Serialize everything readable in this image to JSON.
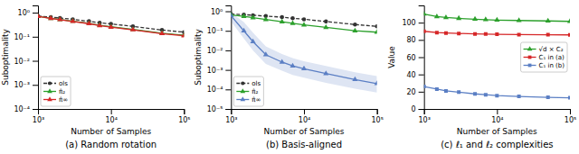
{
  "chart_data": [
    {
      "type": "line",
      "title": "(a) Random rotation",
      "xlabel": "Number of Samples",
      "ylabel": "Suboptimality",
      "x": [
        1000,
        1500,
        2000,
        3000,
        5000,
        7000,
        10000,
        20000,
        50000,
        100000
      ],
      "xlim": [
        1000,
        100000
      ],
      "xticks": [
        {
          "value": 1000,
          "label": "10³"
        },
        {
          "value": 10000,
          "label": "10⁴"
        },
        {
          "value": 100000,
          "label": "10⁵"
        }
      ],
      "ylim": [
        0.0001,
        2
      ],
      "yticks": [
        {
          "value": 0.0001,
          "label": "10⁻⁴"
        },
        {
          "value": 0.001,
          "label": "10⁻³"
        },
        {
          "value": 0.01,
          "label": "10⁻²"
        },
        {
          "value": 0.1,
          "label": "10⁻¹"
        },
        {
          "value": 1,
          "label": "10⁰"
        }
      ],
      "log": true,
      "grid": false,
      "legend": "lower left",
      "series": [
        {
          "name": "ols",
          "color": "#333333",
          "line_style": "dashed",
          "marker": "circle",
          "values": [
            0.72,
            0.65,
            0.6,
            0.53,
            0.44,
            0.38,
            0.34,
            0.27,
            0.19,
            0.155
          ]
        },
        {
          "name": "π̂₂",
          "color": "#2ca02c",
          "line_style": "solid",
          "marker": "triangle",
          "values": [
            0.7,
            0.58,
            0.52,
            0.44,
            0.36,
            0.3,
            0.26,
            0.2,
            0.14,
            0.115
          ]
        },
        {
          "name": "π̂∞",
          "color": "#d62728",
          "line_style": "solid",
          "marker": "triangle",
          "values": [
            0.7,
            0.58,
            0.51,
            0.43,
            0.35,
            0.29,
            0.25,
            0.195,
            0.135,
            0.11
          ],
          "lower": [
            0.65,
            0.53,
            0.47,
            0.4,
            0.32,
            0.27,
            0.23,
            0.18,
            0.125,
            0.1
          ],
          "upper": [
            0.75,
            0.63,
            0.56,
            0.47,
            0.38,
            0.32,
            0.27,
            0.21,
            0.145,
            0.12
          ]
        }
      ]
    },
    {
      "type": "line",
      "title": "(b) Basis-aligned",
      "xlabel": "Number of Samples",
      "ylabel": "Suboptimality",
      "x": [
        1000,
        1500,
        2000,
        3000,
        5000,
        7000,
        10000,
        20000,
        50000,
        100000
      ],
      "xlim": [
        1000,
        100000
      ],
      "xticks": [
        {
          "value": 1000,
          "label": "10³"
        },
        {
          "value": 10000,
          "label": "10⁴"
        },
        {
          "value": 100000,
          "label": "10⁵"
        }
      ],
      "ylim": [
        1e-05,
        2
      ],
      "yticks": [
        {
          "value": 1e-05,
          "label": "10⁻⁵"
        },
        {
          "value": 0.0001,
          "label": "10⁻⁴"
        },
        {
          "value": 0.001,
          "label": "10⁻³"
        },
        {
          "value": 0.01,
          "label": "10⁻²"
        },
        {
          "value": 0.1,
          "label": "10⁻¹"
        },
        {
          "value": 1,
          "label": "10⁰"
        }
      ],
      "log": true,
      "grid": false,
      "legend": "lower left",
      "series": [
        {
          "name": "ols",
          "color": "#333333",
          "line_style": "dashed",
          "marker": "circle",
          "values": [
            0.72,
            0.67,
            0.63,
            0.57,
            0.5,
            0.44,
            0.39,
            0.3,
            0.21,
            0.17
          ]
        },
        {
          "name": "π̂₂",
          "color": "#2ca02c",
          "line_style": "solid",
          "marker": "triangle",
          "values": [
            0.65,
            0.55,
            0.47,
            0.38,
            0.29,
            0.24,
            0.2,
            0.15,
            0.1,
            0.085
          ]
        },
        {
          "name": "π̂∞",
          "color": "#5b7fc4",
          "line_style": "solid",
          "marker": "triangle",
          "values": [
            0.6,
            0.1,
            0.028,
            0.006,
            0.0025,
            0.0016,
            0.00115,
            0.00065,
            0.00032,
            0.0002
          ],
          "lower": [
            0.3,
            0.04,
            0.01,
            0.002,
            0.0009,
            0.00055,
            0.0004,
            0.00022,
            0.00011,
            7e-05
          ],
          "upper": [
            0.85,
            0.28,
            0.08,
            0.016,
            0.0065,
            0.004,
            0.0028,
            0.0016,
            0.00075,
            0.00048
          ]
        }
      ]
    },
    {
      "type": "line",
      "title": "(c) ℓ₁ and ℓ₂ complexities",
      "xlabel": "Number of Samples",
      "ylabel": "Value",
      "x": [
        1000,
        1500,
        2000,
        3000,
        5000,
        7000,
        10000,
        20000,
        50000,
        100000
      ],
      "xlim": [
        1000,
        100000
      ],
      "xticks": [
        {
          "value": 1000,
          "label": "10³"
        },
        {
          "value": 10000,
          "label": "10⁴"
        },
        {
          "value": 100000,
          "label": "10⁵"
        }
      ],
      "ylim": [
        0,
        120
      ],
      "yticks": [
        0,
        20,
        40,
        60,
        80,
        100
      ],
      "log": "x",
      "grid": false,
      "legend": "center right",
      "series": [
        {
          "name": "√d × C₂",
          "color": "#2ca02c",
          "line_style": "solid",
          "marker": "triangle",
          "values": [
            110,
            107,
            106,
            105,
            104,
            103.5,
            103,
            102.5,
            102,
            101.5
          ]
        },
        {
          "name": "C₁ in (a)",
          "color": "#d62728",
          "line_style": "solid",
          "marker": "square",
          "values": [
            90,
            88.5,
            88,
            87.5,
            87,
            86.8,
            86.5,
            86.2,
            86.0,
            85.8
          ]
        },
        {
          "name": "C₁ in (b)",
          "color": "#5b7fc4",
          "line_style": "solid",
          "marker": "square",
          "values": [
            26,
            23,
            21,
            19.5,
            17.5,
            16.5,
            15.5,
            14.5,
            13.5,
            13.0
          ]
        }
      ]
    }
  ]
}
